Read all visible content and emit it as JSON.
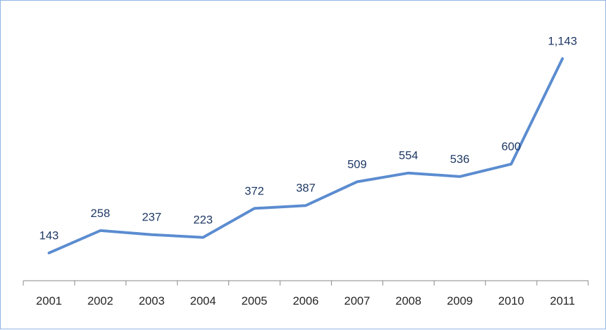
{
  "chart_data": {
    "type": "line",
    "title": "",
    "xlabel": "",
    "ylabel": "",
    "categories": [
      "2001",
      "2002",
      "2003",
      "2004",
      "2005",
      "2006",
      "2007",
      "2008",
      "2009",
      "2010",
      "2011"
    ],
    "series": [
      {
        "values": [
          143,
          258,
          237,
          223,
          372,
          387,
          509,
          554,
          536,
          600,
          1143
        ],
        "labels": [
          "143",
          "258",
          "237",
          "223",
          "372",
          "387",
          "509",
          "554",
          "536",
          "600",
          "1,143"
        ],
        "color": "#5b8cd0"
      }
    ],
    "ylim": [
      0,
      1300
    ],
    "grid": false,
    "legend": "none",
    "axis_color": "#868686"
  }
}
